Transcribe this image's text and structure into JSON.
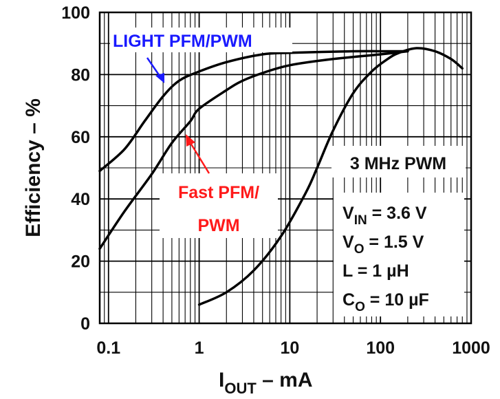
{
  "chart_data": {
    "type": "line",
    "xlabel_main": "I",
    "xlabel_sub": "OUT",
    "xlabel_rest": " –  mA",
    "ylabel": "Efficiency – %",
    "xscale": "log",
    "xlim": [
      0.08,
      1000
    ],
    "ylim": [
      0,
      100
    ],
    "x_ticks": [
      0.1,
      1,
      10,
      100,
      1000
    ],
    "x_tick_labels": [
      "0.1",
      "1",
      "10",
      "100",
      "1000"
    ],
    "y_ticks": [
      0,
      20,
      40,
      60,
      80,
      100
    ],
    "y_tick_labels": [
      "0",
      "20",
      "40",
      "60",
      "80",
      "100"
    ],
    "grid": true,
    "series": [
      {
        "name": "LIGHT PFM/PWM",
        "color": "#000000",
        "x": [
          0.08,
          0.15,
          0.25,
          0.4,
          0.6,
          1,
          2,
          5,
          10,
          50,
          100,
          200
        ],
        "y": [
          49,
          56,
          65,
          73,
          78,
          81,
          84,
          86.5,
          87,
          87.5,
          87.5,
          87.5
        ]
      },
      {
        "name": "Fast PFM/PWM",
        "color": "#000000",
        "x": [
          0.08,
          0.15,
          0.3,
          0.5,
          0.8,
          1,
          2,
          3,
          5,
          10,
          30,
          100,
          200
        ],
        "y": [
          24,
          36,
          48,
          58,
          65,
          69,
          75,
          78,
          80.5,
          83,
          85,
          86.5,
          87.5
        ]
      },
      {
        "name": "3 MHz PWM",
        "color": "#000000",
        "x": [
          1,
          2,
          4,
          8,
          15,
          20,
          30,
          50,
          80,
          120,
          160,
          250,
          400,
          600,
          800
        ],
        "y": [
          6,
          10,
          17,
          28,
          42,
          50,
          62,
          74,
          81,
          85,
          87,
          88.5,
          87.5,
          85,
          82
        ]
      }
    ],
    "annotations": {
      "light": {
        "text": "LIGHT PFM/PWM",
        "color": "#1a1aff"
      },
      "fast_line1": {
        "text": "Fast PFM/",
        "color": "#ff1a1a"
      },
      "fast_line2": {
        "text": "PWM",
        "color": "#ff1a1a"
      },
      "pwm": {
        "text": "3 MHz PWM",
        "color": "#111111"
      }
    },
    "conditions": [
      {
        "main": "V",
        "sub": "IN",
        "rest": " = 3.6 V"
      },
      {
        "main": "V",
        "sub": "O",
        "rest": " = 1.5 V"
      },
      {
        "main": "L = 1 µH",
        "sub": "",
        "rest": ""
      },
      {
        "main": "C",
        "sub": "O",
        "rest": " = 10 µF"
      }
    ]
  }
}
